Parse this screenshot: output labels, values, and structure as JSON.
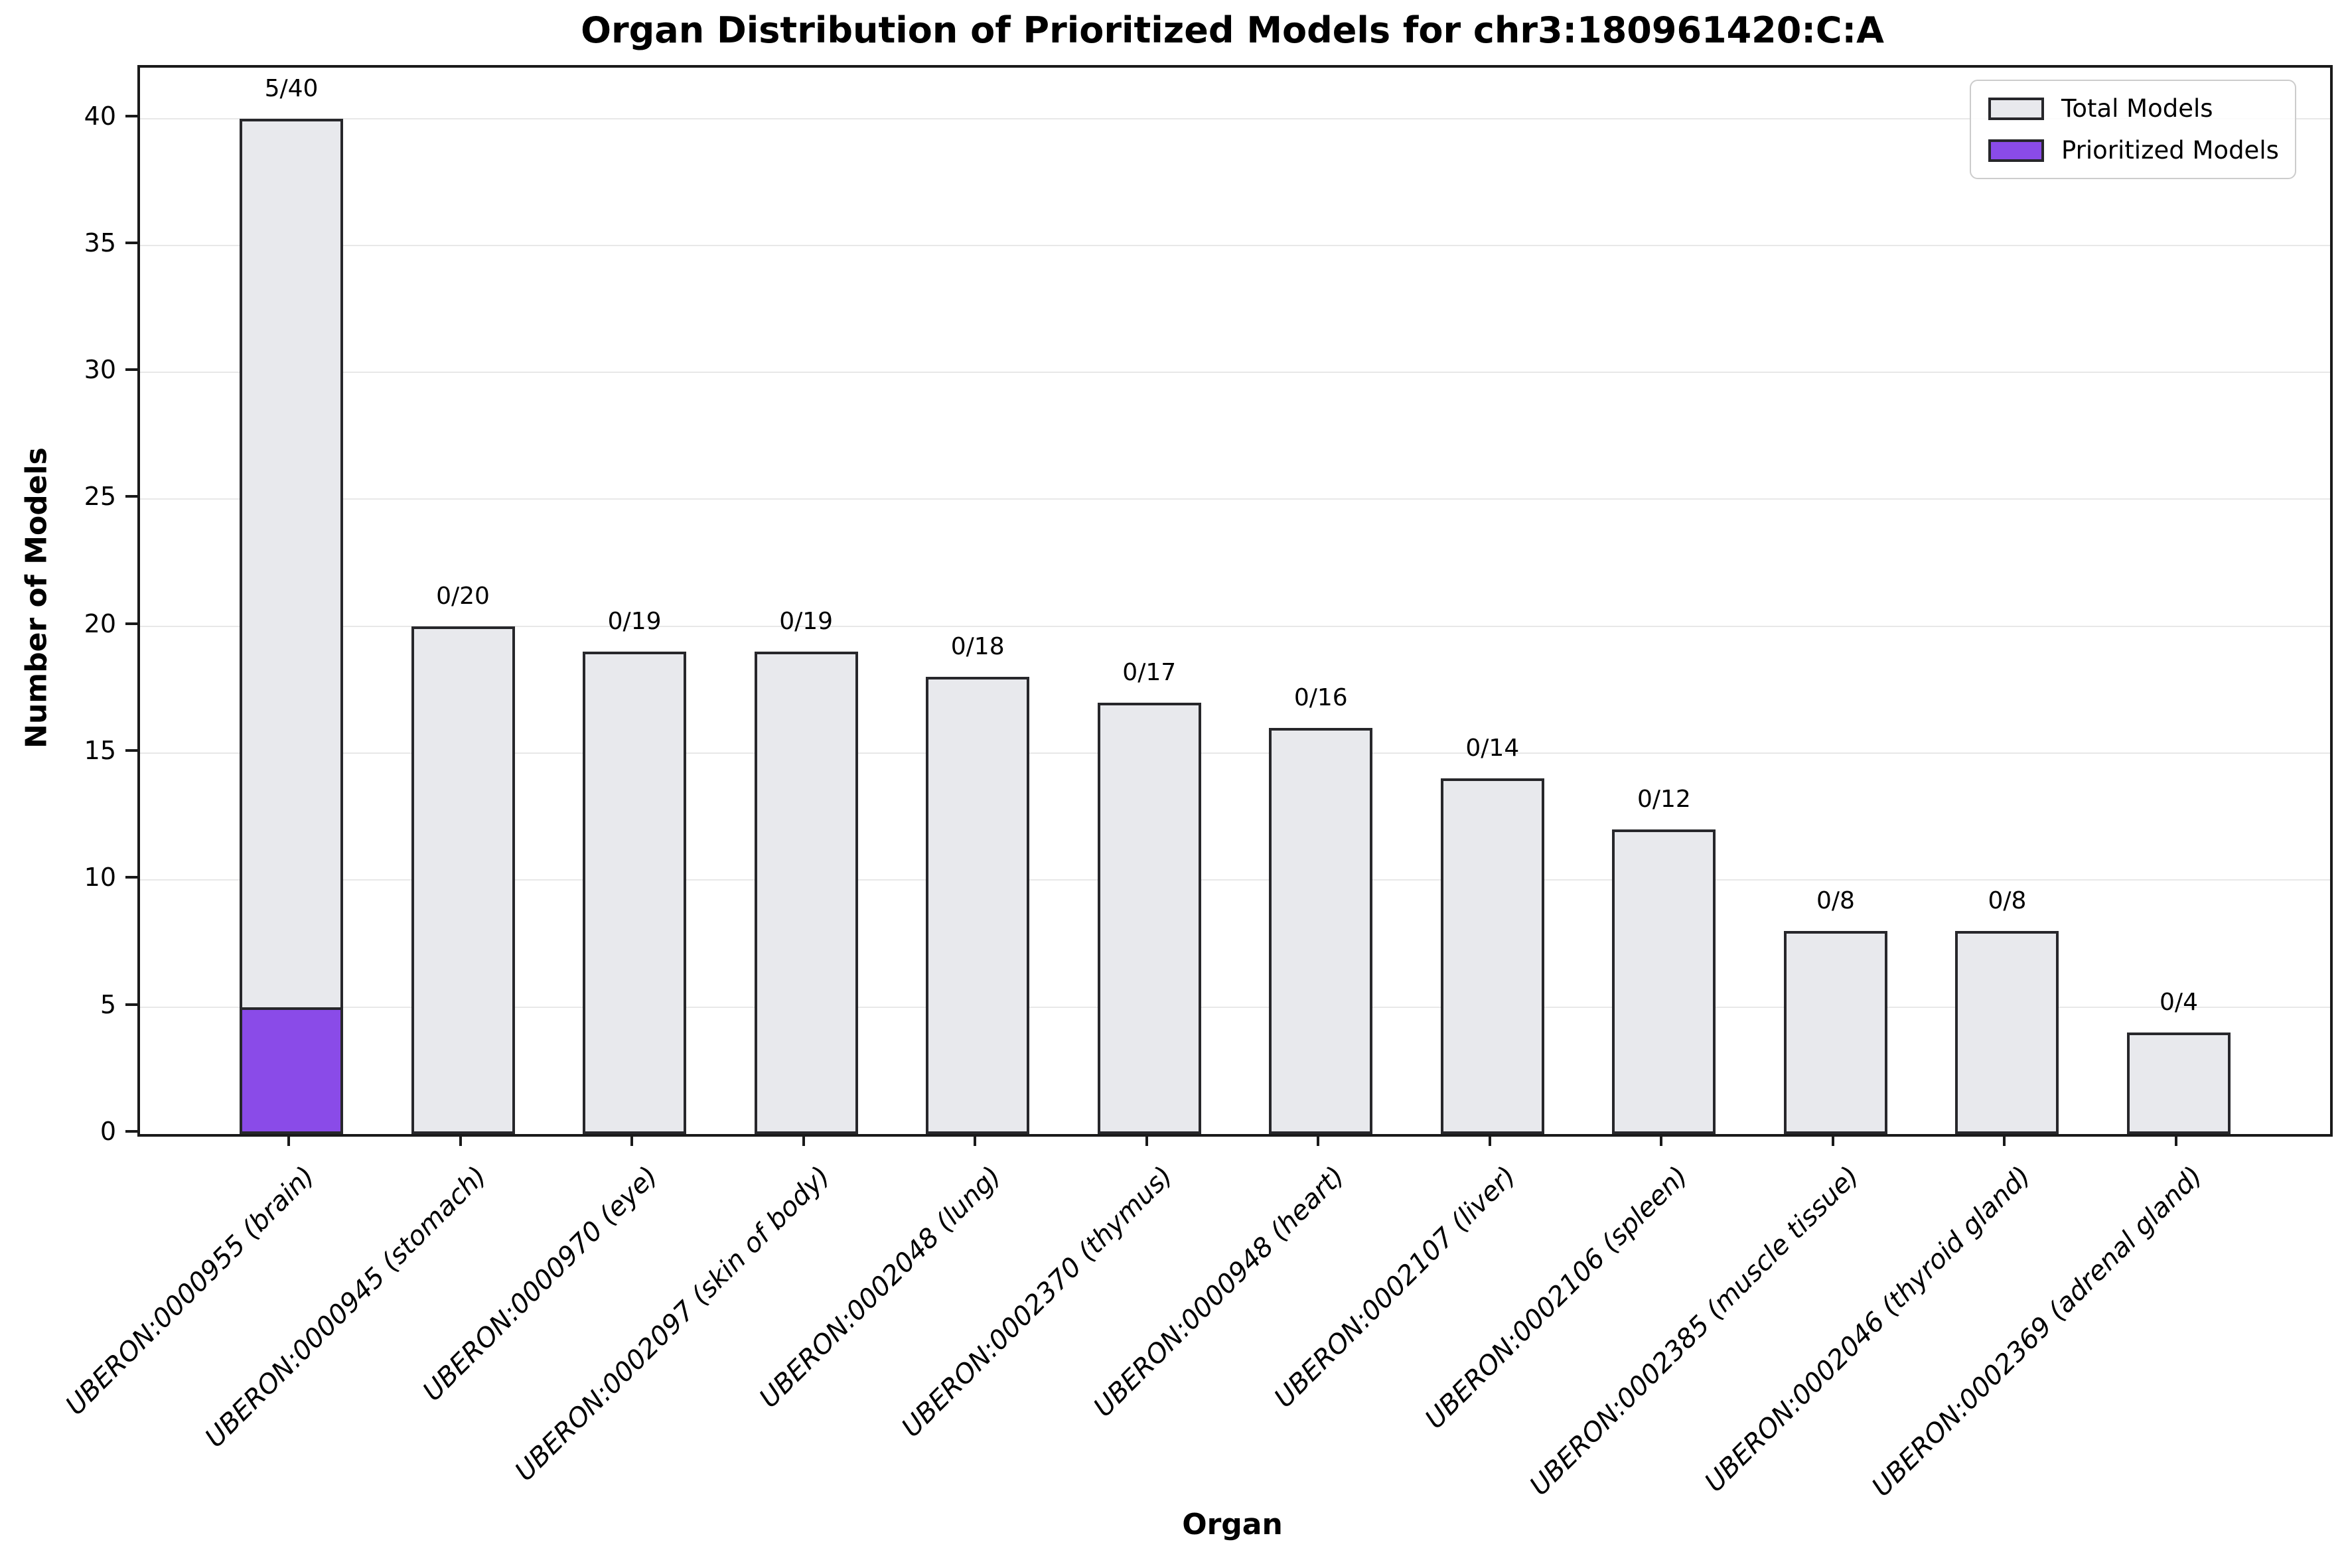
{
  "title": "Organ Distribution of Prioritized Models for chr3:180961420:C:A",
  "legend": {
    "entries": [
      {
        "label": "Total Models",
        "color": "#e8e9ed"
      },
      {
        "label": "Prioritized Models",
        "color": "#8a4be8"
      }
    ]
  },
  "colors": {
    "total_bar_fill": "#e8e9ed",
    "prioritized_bar_fill": "#8a4be8",
    "bar_edge": "#27272b",
    "axis": "#1a1a1a",
    "gridline": "#e8e8e8"
  },
  "chart_data": {
    "type": "bar",
    "title": "Organ Distribution of Prioritized Models for chr3:180961420:C:A",
    "xlabel": "Organ",
    "ylabel": "Number of Models",
    "ylim": [
      0,
      42
    ],
    "yticks": [
      0,
      5,
      10,
      15,
      20,
      25,
      30,
      35,
      40
    ],
    "grid": "horizontal",
    "legend_position": "upper right",
    "categories": [
      "UBERON:0000955 (brain)",
      "UBERON:0000945 (stomach)",
      "UBERON:0000970 (eye)",
      "UBERON:0002097 (skin of body)",
      "UBERON:0002048 (lung)",
      "UBERON:0002370 (thymus)",
      "UBERON:0000948 (heart)",
      "UBERON:0002107 (liver)",
      "UBERON:0002106 (spleen)",
      "UBERON:0002385 (muscle tissue)",
      "UBERON:0002046 (thyroid gland)",
      "UBERON:0002369 (adrenal gland)"
    ],
    "series": [
      {
        "name": "Total Models",
        "color": "#e8e9ed",
        "values": [
          40,
          20,
          19,
          19,
          18,
          17,
          16,
          14,
          12,
          8,
          8,
          4
        ]
      },
      {
        "name": "Prioritized Models",
        "color": "#8a4be8",
        "values": [
          5,
          0,
          0,
          0,
          0,
          0,
          0,
          0,
          0,
          0,
          0,
          0
        ]
      }
    ],
    "bar_labels": [
      "5/40",
      "0/20",
      "0/19",
      "0/19",
      "0/18",
      "0/17",
      "0/16",
      "0/14",
      "0/12",
      "0/8",
      "0/8",
      "0/4"
    ]
  }
}
